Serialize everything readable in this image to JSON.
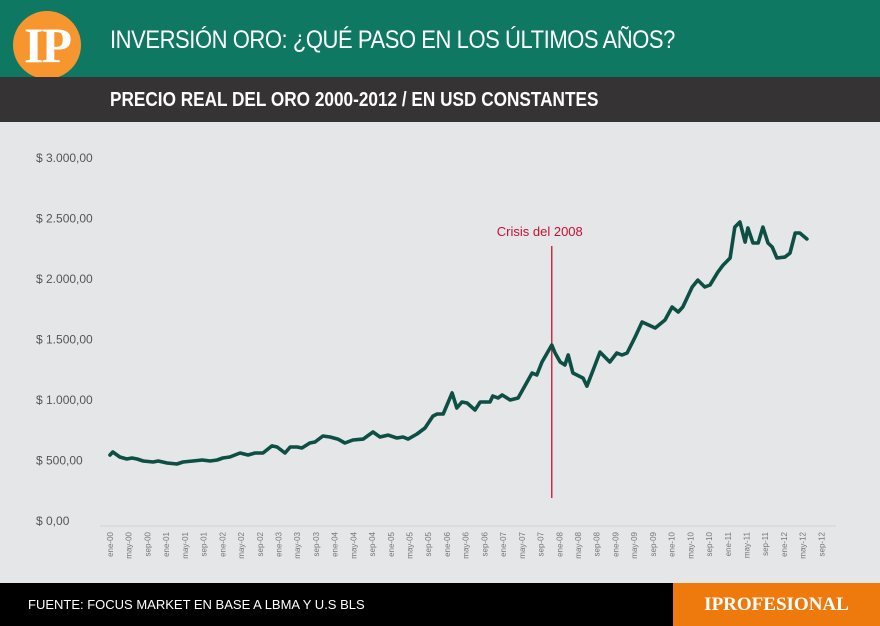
{
  "header": {
    "logo_text": "IP",
    "title": "INVERSIÓN ORO: ¿QUÉ PASO EN LOS ÚLTIMOS AÑOS?",
    "subtitle": "PRECIO REAL DEL ORO 2000-2012 / EN USD CONSTANTES"
  },
  "footer": {
    "source": "FUENTE: FOCUS MARKET EN BASE A LBMA Y U.S BLS",
    "brand": "IPROFESIONAL"
  },
  "colors": {
    "line": "#0d4f44",
    "annotation": "#c8102e",
    "header": "#0f7863",
    "brand": "#ee7a0d"
  },
  "chart_data": {
    "type": "line",
    "title": "PRECIO REAL DEL ORO 2000-2012 / EN USD CONSTANTES",
    "xlabel": "",
    "ylabel": "USD constantes",
    "ylim": [
      0,
      3000
    ],
    "y_ticks": [
      0,
      500,
      1000,
      1500,
      2000,
      2500,
      3000
    ],
    "y_tick_labels": [
      "$ 0,00",
      "$ 500,00",
      "$ 1.000,00",
      "$ 1.500,00",
      "$ 2.000,00",
      "$ 2.500,00",
      "$ 3.000,00"
    ],
    "x_unit": "months since ene-00",
    "x_tick_labels": [
      "ene-00",
      "may-00",
      "sep-00",
      "ene-01",
      "may-01",
      "sep-01",
      "ene-02",
      "may-02",
      "sep-02",
      "ene-03",
      "may-03",
      "sep-03",
      "ene-04",
      "may-04",
      "sep-04",
      "ene-05",
      "may-05",
      "sep-05",
      "ene-06",
      "may-06",
      "sep-06",
      "ene-07",
      "may-07",
      "sep-07",
      "ene-08",
      "may-08",
      "sep-08",
      "ene-09",
      "may-09",
      "sep-09",
      "ene-10",
      "may-10",
      "sep-10",
      "ene-11",
      "may-11",
      "sep-11",
      "ene-12",
      "may-12",
      "sep-12"
    ],
    "grid": false,
    "series": [
      {
        "name": "Precio real del oro",
        "points": [
          [
            0,
            537
          ],
          [
            0.6,
            562
          ],
          [
            2.1,
            521
          ],
          [
            3.6,
            504
          ],
          [
            4.7,
            512
          ],
          [
            5.8,
            504
          ],
          [
            7.1,
            488
          ],
          [
            9.2,
            479
          ],
          [
            10.3,
            488
          ],
          [
            12.2,
            471
          ],
          [
            14.3,
            463
          ],
          [
            15.6,
            479
          ],
          [
            17.7,
            488
          ],
          [
            19.7,
            496
          ],
          [
            21.4,
            488
          ],
          [
            22.9,
            496
          ],
          [
            24.1,
            512
          ],
          [
            25.6,
            521
          ],
          [
            27.8,
            554
          ],
          [
            29.5,
            537
          ],
          [
            31.0,
            554
          ],
          [
            32.7,
            554
          ],
          [
            34.6,
            612
          ],
          [
            35.7,
            603
          ],
          [
            37.4,
            554
          ],
          [
            38.5,
            603
          ],
          [
            40.0,
            603
          ],
          [
            41.0,
            595
          ],
          [
            42.7,
            636
          ],
          [
            43.8,
            645
          ],
          [
            45.5,
            694
          ],
          [
            47.0,
            686
          ],
          [
            48.7,
            669
          ],
          [
            50.2,
            636
          ],
          [
            51.9,
            661
          ],
          [
            54.1,
            669
          ],
          [
            56.2,
            727
          ],
          [
            57.7,
            686
          ],
          [
            59.4,
            702
          ],
          [
            61.3,
            678
          ],
          [
            62.6,
            686
          ],
          [
            63.7,
            669
          ],
          [
            65.6,
            711
          ],
          [
            67.3,
            760
          ],
          [
            69.0,
            859
          ],
          [
            69.9,
            876
          ],
          [
            71.2,
            876
          ],
          [
            73.1,
            1050
          ],
          [
            74.1,
            926
          ],
          [
            75.2,
            975
          ],
          [
            76.3,
            967
          ],
          [
            78.0,
            909
          ],
          [
            79.1,
            975
          ],
          [
            81.2,
            975
          ],
          [
            81.8,
            1025
          ],
          [
            82.9,
            1008
          ],
          [
            83.8,
            1033
          ],
          [
            85.5,
            992
          ],
          [
            87.2,
            1008
          ],
          [
            90.2,
            1215
          ],
          [
            91.2,
            1198
          ],
          [
            92.3,
            1306
          ],
          [
            94.4,
            1446
          ],
          [
            95.1,
            1380
          ],
          [
            96.2,
            1306
          ],
          [
            97.2,
            1281
          ],
          [
            97.9,
            1364
          ],
          [
            98.9,
            1215
          ],
          [
            101.1,
            1173
          ],
          [
            101.9,
            1107
          ],
          [
            103.0,
            1215
          ],
          [
            104.7,
            1388
          ],
          [
            106.8,
            1306
          ],
          [
            108.3,
            1380
          ],
          [
            109.4,
            1364
          ],
          [
            110.5,
            1380
          ],
          [
            112.2,
            1512
          ],
          [
            113.7,
            1636
          ],
          [
            116.5,
            1587
          ],
          [
            118.6,
            1653
          ],
          [
            120.1,
            1760
          ],
          [
            121.4,
            1719
          ],
          [
            122.4,
            1760
          ],
          [
            124.4,
            1926
          ],
          [
            125.6,
            1983
          ],
          [
            127.1,
            1926
          ],
          [
            128.2,
            1942
          ],
          [
            129.9,
            2049
          ],
          [
            131.0,
            2107
          ],
          [
            132.5,
            2165
          ],
          [
            133.5,
            2421
          ],
          [
            134.6,
            2463
          ],
          [
            135.7,
            2297
          ],
          [
            136.3,
            2413
          ],
          [
            137.4,
            2289
          ],
          [
            138.5,
            2289
          ],
          [
            139.5,
            2421
          ],
          [
            140.6,
            2289
          ],
          [
            141.5,
            2256
          ],
          [
            142.5,
            2165
          ],
          [
            144.2,
            2173
          ],
          [
            145.3,
            2206
          ],
          [
            146.4,
            2372
          ],
          [
            147.4,
            2372
          ],
          [
            148.9,
            2322
          ]
        ]
      }
    ],
    "annotations": [
      {
        "text": "Crisis del 2008",
        "x": 94.4,
        "type": "vertical-line"
      }
    ]
  }
}
